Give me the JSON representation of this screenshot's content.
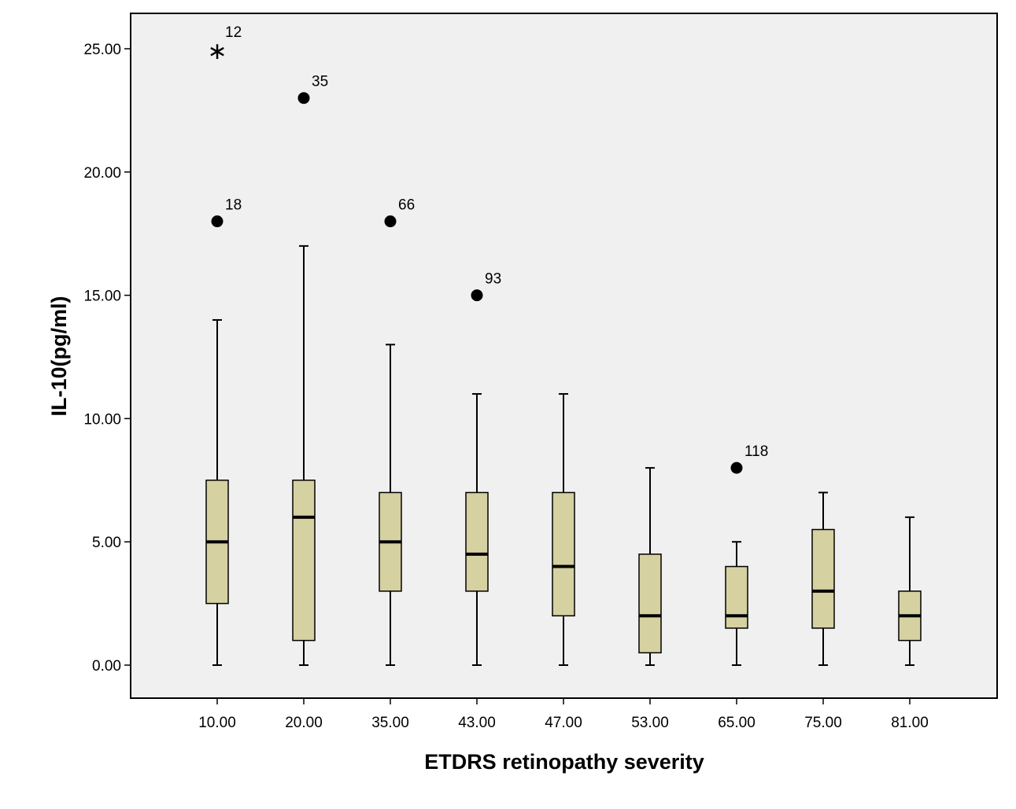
{
  "chart_data": {
    "type": "boxplot",
    "title": "",
    "xlabel": "ETDRS retinopathy severity",
    "ylabel": "IL-10(pg/ml)",
    "ylim": [
      -1.3,
      27.5
    ],
    "yticks": [
      "0.00",
      "5.00",
      "10.00",
      "15.00",
      "20.00",
      "25.00"
    ],
    "ytick_values": [
      0,
      5,
      10,
      15,
      20,
      25
    ],
    "categories": [
      "10.00",
      "20.00",
      "35.00",
      "43.00",
      "47.00",
      "53.00",
      "65.00",
      "75.00",
      "81.00"
    ],
    "boxes": [
      {
        "category": "10.00",
        "whisker_low": 0,
        "q1": 2.5,
        "median": 5,
        "q3": 7.5,
        "whisker_high": 14
      },
      {
        "category": "20.00",
        "whisker_low": 0,
        "q1": 1,
        "median": 6,
        "q3": 7.5,
        "whisker_high": 17
      },
      {
        "category": "35.00",
        "whisker_low": 0,
        "q1": 3,
        "median": 5,
        "q3": 7,
        "whisker_high": 13
      },
      {
        "category": "43.00",
        "whisker_low": 0,
        "q1": 3,
        "median": 4.5,
        "q3": 7,
        "whisker_high": 11
      },
      {
        "category": "47.00",
        "whisker_low": 0,
        "q1": 2,
        "median": 4,
        "q3": 7,
        "whisker_high": 11
      },
      {
        "category": "53.00",
        "whisker_low": 0,
        "q1": 0.5,
        "median": 2,
        "q3": 4.5,
        "whisker_high": 8
      },
      {
        "category": "65.00",
        "whisker_low": 0,
        "q1": 1.5,
        "median": 2,
        "q3": 4,
        "whisker_high": 5
      },
      {
        "category": "75.00",
        "whisker_low": 0,
        "q1": 1.5,
        "median": 3,
        "q3": 5.5,
        "whisker_high": 7
      },
      {
        "category": "81.00",
        "whisker_low": 0,
        "q1": 1,
        "median": 2,
        "q3": 3,
        "whisker_high": 6
      }
    ],
    "outliers": [
      {
        "category": "10.00",
        "value": 25,
        "label": "12",
        "marker": "star"
      },
      {
        "category": "10.00",
        "value": 18,
        "label": "18",
        "marker": "circle"
      },
      {
        "category": "20.00",
        "value": 23,
        "label": "35",
        "marker": "circle"
      },
      {
        "category": "35.00",
        "value": 18,
        "label": "66",
        "marker": "circle"
      },
      {
        "category": "43.00",
        "value": 15,
        "label": "93",
        "marker": "circle"
      },
      {
        "category": "65.00",
        "value": 8,
        "label": "118",
        "marker": "circle"
      }
    ],
    "colors": {
      "box_fill": "#d5d1a1",
      "plot_background": "#f0f0f0",
      "page_background": "#ffffff",
      "stroke": "#000000"
    }
  }
}
